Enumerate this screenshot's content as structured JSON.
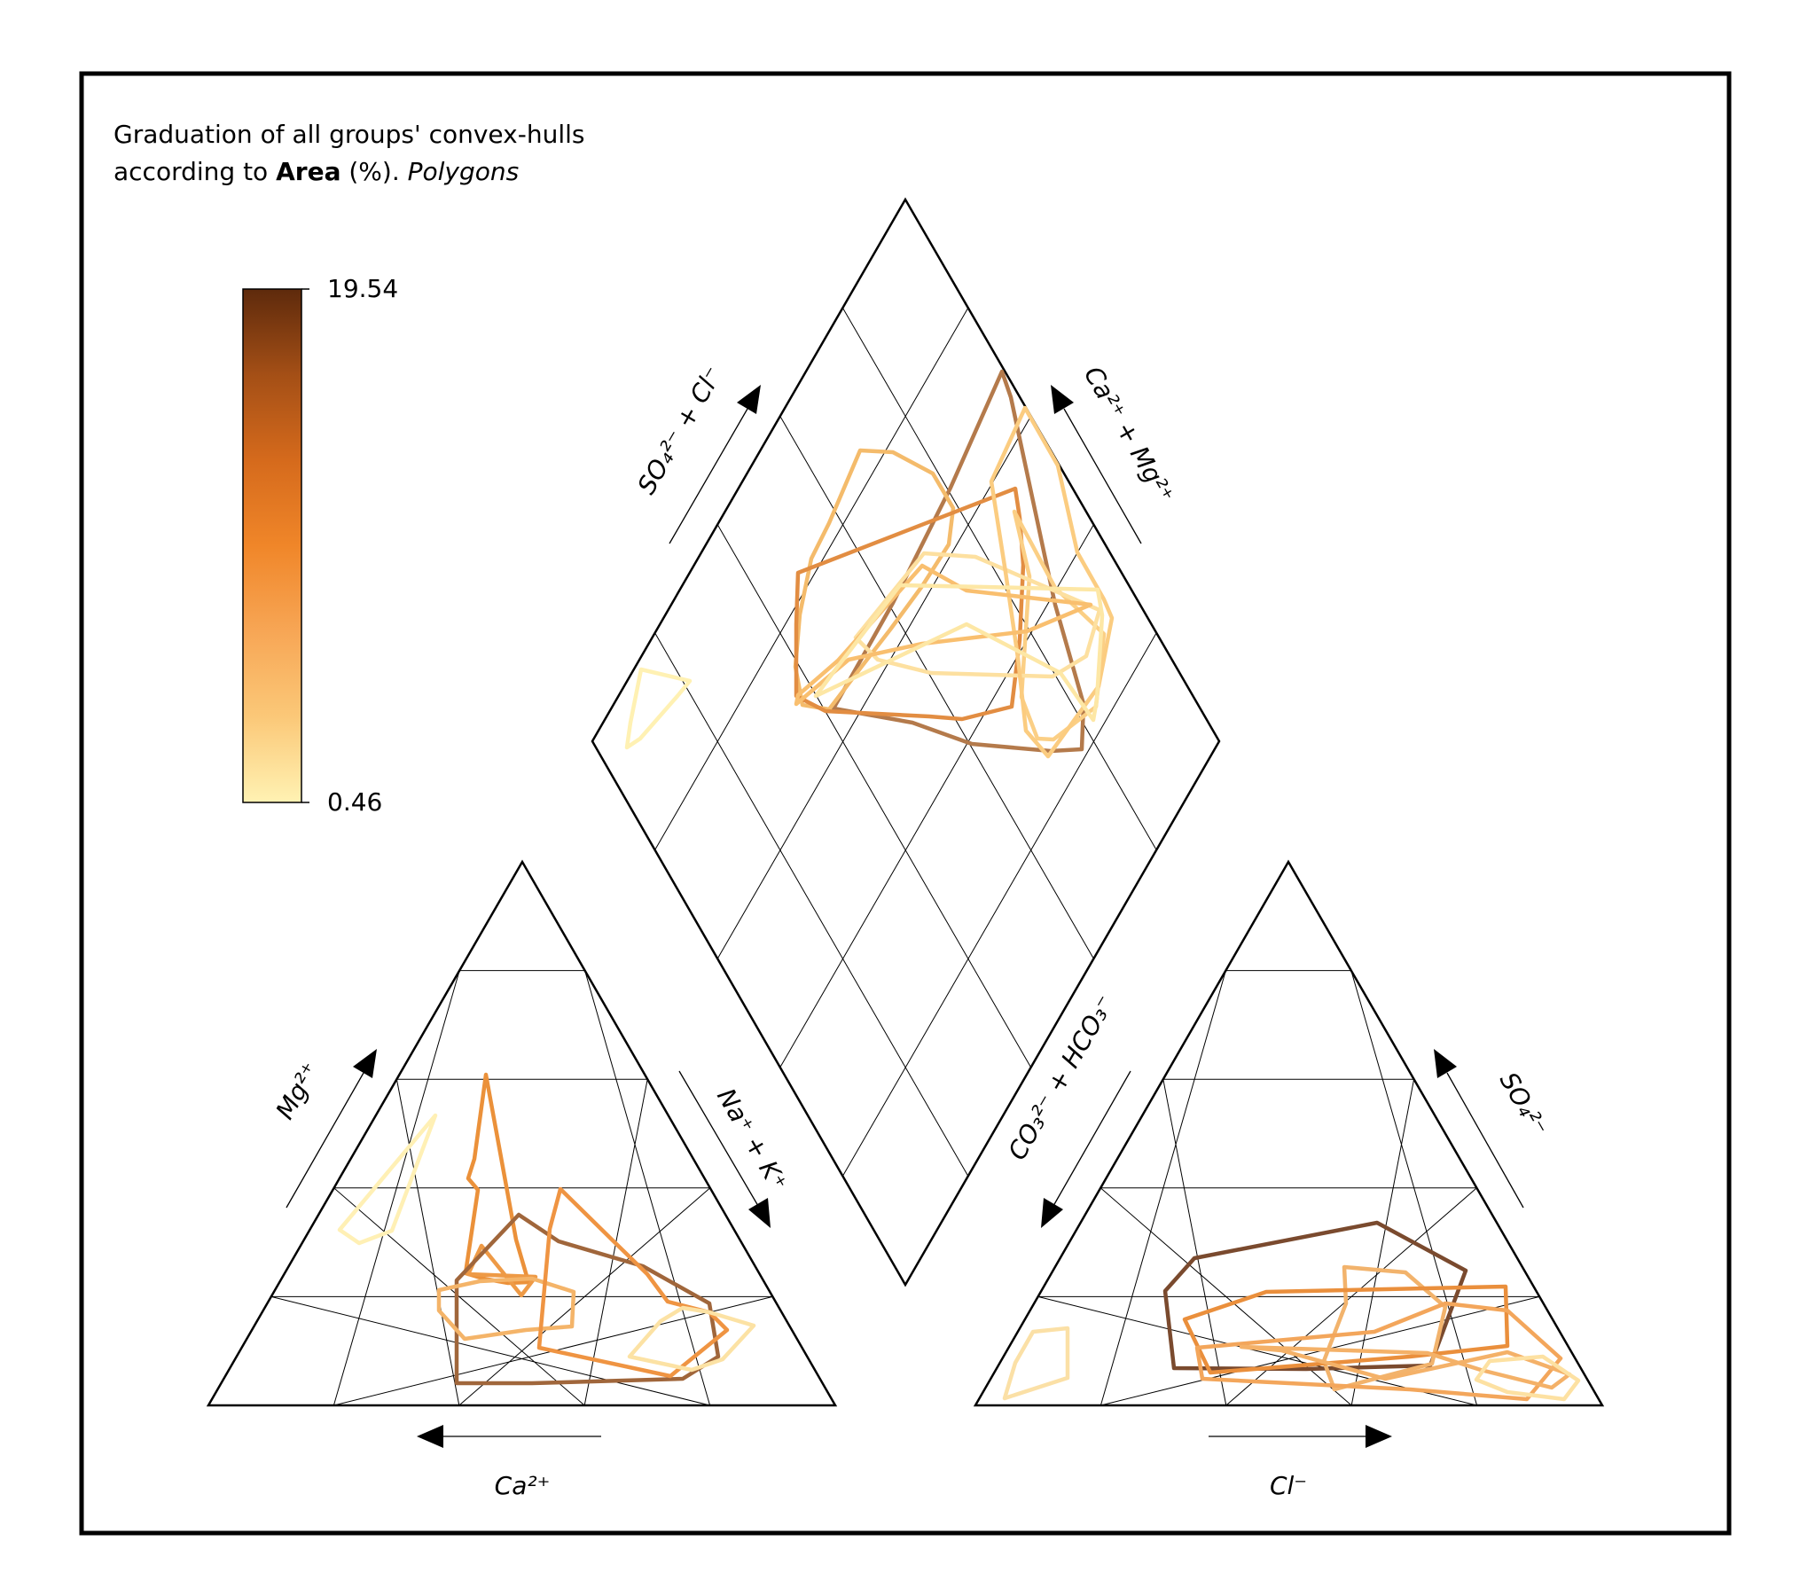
{
  "title": {
    "line1": "Graduation of all groups' convex-hulls",
    "line2_prefix": "according to ",
    "line2_bold": "Area",
    "line2_mid": " (%). ",
    "line2_italic": "Polygons"
  },
  "colorbar": {
    "max_label": "19.54",
    "min_label": "0.46",
    "stops": [
      "#fff2b3",
      "#fbc878",
      "#f7a655",
      "#f08629",
      "#d56a1c",
      "#a44f16",
      "#5e2a0c"
    ]
  },
  "axes": {
    "ca": "Ca²⁺",
    "mg": "Mg²⁺",
    "nak": "Na⁺ + K⁺",
    "cl": "Cl⁻",
    "so4": "SO₄²⁻",
    "co3hco3": "CO₃²⁻ + HCO₃⁻",
    "so4cl": "SO₄²⁻ + Cl⁻",
    "camg": "Ca²⁺ + Mg²⁺"
  },
  "chart_data": {
    "type": "piper",
    "colorbar_range": [
      0.46,
      19.54
    ],
    "polygon_colors": {
      "diamond": [
        "#b47a4b",
        "#f4bb6b",
        "#e28d42",
        "#fbcf85",
        "#fde0a0",
        "#fbcc80",
        "#f9bf6f",
        "#fde7a5",
        "#fff1b3"
      ],
      "cation": [
        "#fff0b5",
        "#eb913a",
        "#ee9a46",
        "#a0663b",
        "#f4b469",
        "#ef9442",
        "#fce2a4"
      ],
      "anion": [
        "#fbe0a6",
        "#7a4a2e",
        "#f2b36c",
        "#ea8f3c",
        "#f3a65b",
        "#f4b168",
        "#fde1a2"
      ]
    }
  }
}
